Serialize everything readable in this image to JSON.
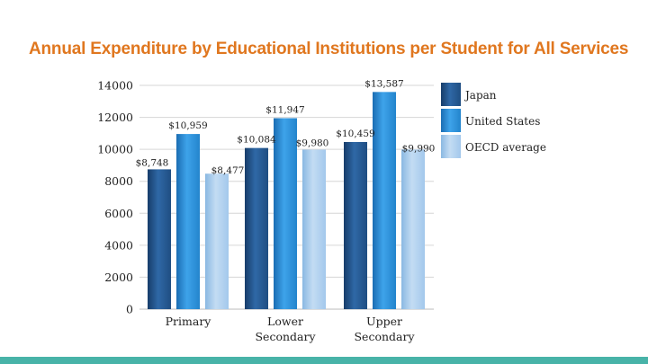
{
  "slide": {
    "title": "Annual Expenditure by Educational Institutions per Student for All Services"
  },
  "chart_data": {
    "type": "bar",
    "title": "",
    "xlabel": "",
    "ylabel": "",
    "categories": [
      [
        "Primary"
      ],
      [
        "Lower",
        "Secondary"
      ],
      [
        "Upper",
        "Secondary"
      ]
    ],
    "series": [
      {
        "name": "Japan",
        "values": [
          8748,
          10084,
          10459
        ],
        "labels": [
          "$8,748",
          "$10,084",
          "$10,459"
        ],
        "color": "#2a5d96"
      },
      {
        "name": "United States",
        "values": [
          10959,
          11947,
          13587
        ],
        "labels": [
          "$10,959",
          "$11,947",
          "$13,587"
        ],
        "color": "#2a8ed6"
      },
      {
        "name": "OECD average",
        "values": [
          8477,
          9980,
          9990
        ],
        "labels": [
          "$8,477",
          "$9,980",
          "$9,990"
        ],
        "color": "#a9cdee"
      }
    ],
    "ylim": [
      0,
      14000
    ],
    "yticks": [
      "0",
      "2000",
      "4000",
      "6000",
      "8000",
      "10000",
      "12000",
      "14000"
    ],
    "grid": true,
    "legend": "right"
  }
}
